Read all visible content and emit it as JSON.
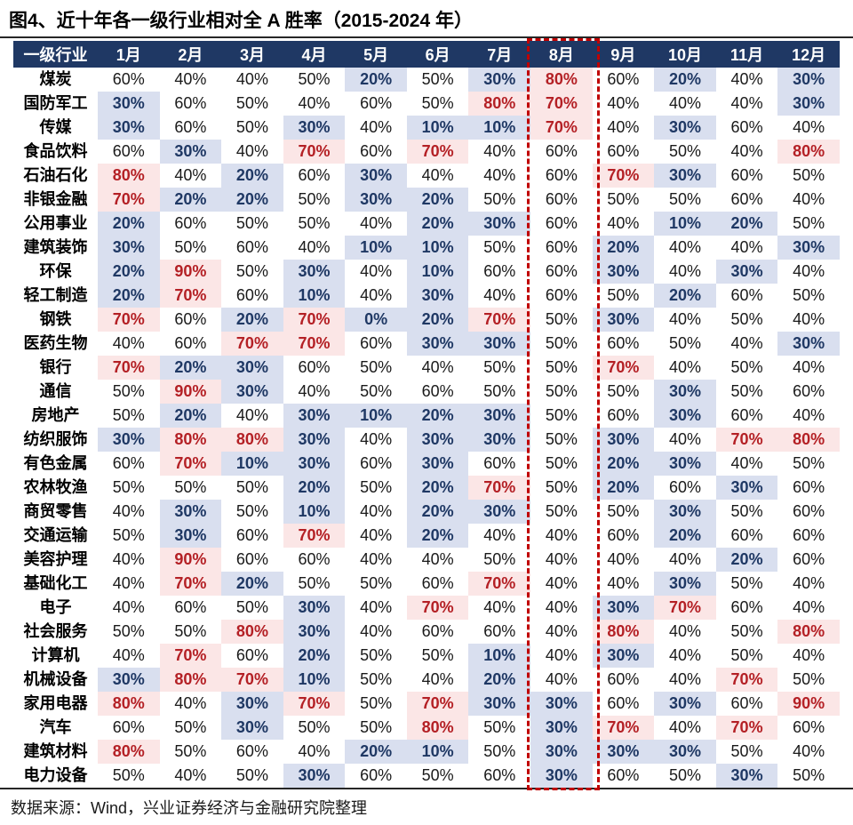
{
  "title": "图4、近十年各一级行业相对全 A 胜率（2015-2024 年）",
  "source_note": "数据来源：Wind，兴业证券经济与金融研究院整理",
  "highlight_column": "8月",
  "unit_suffix": "%",
  "thresholds": {
    "low_max": 30,
    "high_min": 70
  },
  "colors": {
    "header_bg": "#1F3864",
    "header_text": "#FFFFFF",
    "low_text": "#1F3864",
    "low_bg": "#D9DFEF",
    "high_text": "#B42025",
    "high_bg": "#FBE6E6",
    "normal_text": "#1A1A1A",
    "highlight_border": "#C00000",
    "rule_line": "#262626"
  },
  "chart_data": {
    "type": "table",
    "title": "图4、近十年各一级行业相对全 A 胜率（2015-2024 年）",
    "unit": "%",
    "columns": [
      "一级行业",
      "1月",
      "2月",
      "3月",
      "4月",
      "5月",
      "6月",
      "7月",
      "8月",
      "9月",
      "10月",
      "11月",
      "12月"
    ],
    "rows": [
      {
        "industry": "煤炭",
        "values": [
          60,
          40,
          40,
          50,
          20,
          50,
          30,
          80,
          60,
          20,
          40,
          30
        ]
      },
      {
        "industry": "国防军工",
        "values": [
          30,
          60,
          50,
          40,
          60,
          50,
          80,
          70,
          40,
          40,
          40,
          30
        ]
      },
      {
        "industry": "传媒",
        "values": [
          30,
          60,
          50,
          30,
          40,
          10,
          10,
          70,
          40,
          30,
          60,
          40
        ]
      },
      {
        "industry": "食品饮料",
        "values": [
          60,
          30,
          40,
          70,
          60,
          70,
          40,
          60,
          60,
          50,
          40,
          80
        ]
      },
      {
        "industry": "石油石化",
        "values": [
          80,
          40,
          20,
          60,
          30,
          40,
          40,
          60,
          70,
          30,
          60,
          50
        ]
      },
      {
        "industry": "非银金融",
        "values": [
          70,
          20,
          20,
          50,
          30,
          20,
          50,
          60,
          50,
          50,
          60,
          40
        ]
      },
      {
        "industry": "公用事业",
        "values": [
          20,
          60,
          50,
          50,
          40,
          20,
          30,
          60,
          40,
          10,
          20,
          50
        ]
      },
      {
        "industry": "建筑装饰",
        "values": [
          30,
          50,
          60,
          40,
          10,
          10,
          50,
          60,
          20,
          40,
          40,
          30
        ]
      },
      {
        "industry": "环保",
        "values": [
          20,
          90,
          50,
          30,
          40,
          10,
          60,
          60,
          30,
          40,
          30,
          40
        ]
      },
      {
        "industry": "轻工制造",
        "values": [
          20,
          70,
          60,
          10,
          40,
          30,
          40,
          60,
          50,
          20,
          60,
          50
        ]
      },
      {
        "industry": "钢铁",
        "values": [
          70,
          60,
          20,
          70,
          0,
          20,
          70,
          50,
          30,
          40,
          50,
          40
        ]
      },
      {
        "industry": "医药生物",
        "values": [
          40,
          60,
          70,
          70,
          60,
          30,
          30,
          50,
          60,
          50,
          40,
          30
        ]
      },
      {
        "industry": "银行",
        "values": [
          70,
          20,
          30,
          60,
          50,
          40,
          50,
          50,
          70,
          40,
          50,
          40
        ]
      },
      {
        "industry": "通信",
        "values": [
          50,
          90,
          30,
          40,
          50,
          60,
          50,
          50,
          50,
          30,
          50,
          60
        ]
      },
      {
        "industry": "房地产",
        "values": [
          50,
          20,
          40,
          30,
          10,
          20,
          30,
          50,
          60,
          30,
          60,
          40
        ]
      },
      {
        "industry": "纺织服饰",
        "values": [
          30,
          80,
          80,
          30,
          40,
          30,
          30,
          50,
          30,
          40,
          70,
          80
        ]
      },
      {
        "industry": "有色金属",
        "values": [
          60,
          70,
          10,
          30,
          60,
          30,
          60,
          50,
          20,
          30,
          40,
          50
        ]
      },
      {
        "industry": "农林牧渔",
        "values": [
          50,
          50,
          50,
          20,
          50,
          20,
          70,
          50,
          20,
          60,
          30,
          60
        ]
      },
      {
        "industry": "商贸零售",
        "values": [
          40,
          30,
          50,
          10,
          40,
          20,
          30,
          50,
          50,
          30,
          50,
          60
        ]
      },
      {
        "industry": "交通运输",
        "values": [
          50,
          30,
          60,
          70,
          40,
          20,
          40,
          40,
          60,
          20,
          60,
          60
        ]
      },
      {
        "industry": "美容护理",
        "values": [
          40,
          90,
          60,
          60,
          40,
          40,
          50,
          40,
          40,
          40,
          20,
          60
        ]
      },
      {
        "industry": "基础化工",
        "values": [
          40,
          70,
          20,
          50,
          50,
          60,
          70,
          40,
          40,
          30,
          50,
          40
        ]
      },
      {
        "industry": "电子",
        "values": [
          40,
          60,
          50,
          30,
          40,
          70,
          40,
          40,
          30,
          70,
          60,
          40
        ]
      },
      {
        "industry": "社会服务",
        "values": [
          50,
          50,
          80,
          30,
          40,
          60,
          60,
          40,
          80,
          40,
          50,
          80
        ]
      },
      {
        "industry": "计算机",
        "values": [
          40,
          70,
          60,
          20,
          50,
          50,
          10,
          40,
          30,
          40,
          50,
          40
        ]
      },
      {
        "industry": "机械设备",
        "values": [
          30,
          80,
          70,
          10,
          50,
          40,
          20,
          40,
          60,
          40,
          70,
          50
        ]
      },
      {
        "industry": "家用电器",
        "values": [
          80,
          40,
          30,
          70,
          50,
          70,
          30,
          30,
          60,
          30,
          60,
          90
        ]
      },
      {
        "industry": "汽车",
        "values": [
          60,
          50,
          30,
          50,
          50,
          80,
          50,
          30,
          70,
          40,
          70,
          60
        ]
      },
      {
        "industry": "建筑材料",
        "values": [
          80,
          50,
          60,
          40,
          20,
          10,
          50,
          30,
          30,
          30,
          50,
          40
        ]
      },
      {
        "industry": "电力设备",
        "values": [
          50,
          40,
          50,
          30,
          60,
          50,
          60,
          30,
          60,
          50,
          30,
          50
        ]
      }
    ],
    "layout_hints": {
      "sorted_by": "8月 descending",
      "low_cells": "value <= 30 shown bold navy on light blue",
      "high_cells": "value >= 70 shown bold red on light pink",
      "highlight": "red dashed rectangle around 8月 column"
    }
  }
}
